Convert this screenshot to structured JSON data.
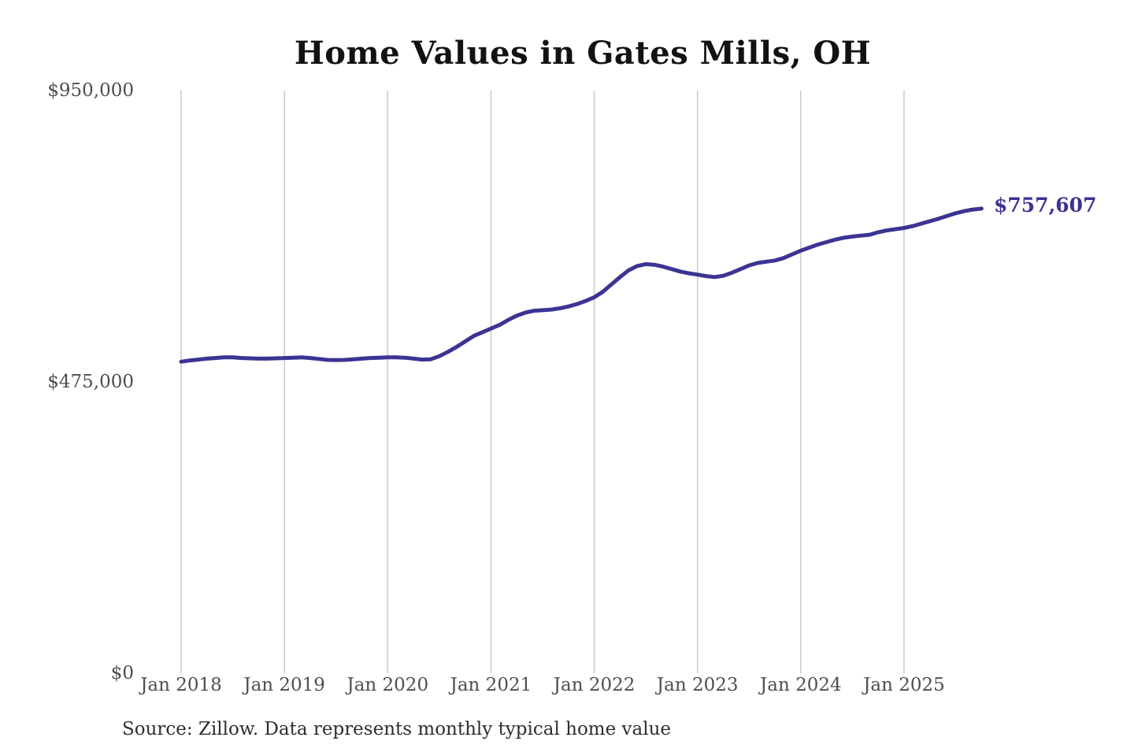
{
  "title": "Home Values in Gates Mills, OH",
  "end_label": "$757,607",
  "source": "Source: Zillow. Data represents monthly typical home value",
  "colors": {
    "line": "#3b3493",
    "grid": "#c9c9c9",
    "axis_text": "#4f4f4f",
    "title_text": "#121212",
    "annotation": "#3b3493"
  },
  "y_axis": {
    "ticks": [
      "$950,000",
      "$475,000",
      "$0"
    ]
  },
  "x_axis": {
    "ticks": [
      "Jan 2018",
      "Jan 2019",
      "Jan 2020",
      "Jan 2021",
      "Jan 2022",
      "Jan 2023",
      "Jan 2024",
      "Jan 2025"
    ]
  },
  "chart_data": {
    "type": "line",
    "title": "Home Values in Gates Mills, OH",
    "series_name": "Monthly typical home value (Zillow)",
    "xlabel": "",
    "ylabel": "",
    "ylim": [
      0,
      950000
    ],
    "y_ticks": [
      0,
      475000,
      950000
    ],
    "y_tick_labels": [
      "$0",
      "$475,000",
      "$950,000"
    ],
    "x_tick_labels": [
      "Jan 2018",
      "Jan 2019",
      "Jan 2020",
      "Jan 2021",
      "Jan 2022",
      "Jan 2023",
      "Jan 2024",
      "Jan 2025"
    ],
    "grid": "vertical-only",
    "legend": "none",
    "end_annotation": "$757,607",
    "last_value": 757607,
    "x": [
      "Jan 2018",
      "Feb 2018",
      "Mar 2018",
      "Apr 2018",
      "May 2018",
      "Jun 2018",
      "Jul 2018",
      "Aug 2018",
      "Sep 2018",
      "Oct 2018",
      "Nov 2018",
      "Dec 2018",
      "Jan 2019",
      "Feb 2019",
      "Mar 2019",
      "Apr 2019",
      "May 2019",
      "Jun 2019",
      "Jul 2019",
      "Aug 2019",
      "Sep 2019",
      "Oct 2019",
      "Nov 2019",
      "Dec 2019",
      "Jan 2020",
      "Feb 2020",
      "Mar 2020",
      "Apr 2020",
      "May 2020",
      "Jun 2020",
      "Jul 2020",
      "Aug 2020",
      "Sep 2020",
      "Oct 2020",
      "Nov 2020",
      "Dec 2020",
      "Jan 2021",
      "Feb 2021",
      "Mar 2021",
      "Apr 2021",
      "May 2021",
      "Jun 2021",
      "Jul 2021",
      "Aug 2021",
      "Sep 2021",
      "Oct 2021",
      "Nov 2021",
      "Dec 2021",
      "Jan 2022",
      "Feb 2022",
      "Mar 2022",
      "Apr 2022",
      "May 2022",
      "Jun 2022",
      "Jul 2022",
      "Aug 2022",
      "Sep 2022",
      "Oct 2022",
      "Nov 2022",
      "Dec 2022",
      "Jan 2023",
      "Feb 2023",
      "Mar 2023",
      "Apr 2023",
      "May 2023",
      "Jun 2023",
      "Jul 2023",
      "Aug 2023",
      "Sep 2023",
      "Oct 2023",
      "Nov 2023",
      "Dec 2023",
      "Jan 2024",
      "Feb 2024",
      "Mar 2024",
      "Apr 2024",
      "May 2024",
      "Jun 2024",
      "Jul 2024",
      "Aug 2024",
      "Sep 2024",
      "Oct 2024",
      "Nov 2024",
      "Dec 2024",
      "Jan 2025",
      "Feb 2025",
      "Mar 2025",
      "Apr 2025",
      "May 2025",
      "Jun 2025",
      "Jul 2025",
      "Aug 2025",
      "Sep 2025",
      "Oct 2025"
    ],
    "values": [
      508000,
      510000,
      511500,
      513000,
      514000,
      515000,
      515000,
      514000,
      513500,
      513000,
      513000,
      513500,
      514000,
      514500,
      515000,
      514000,
      512500,
      511000,
      510500,
      511000,
      512000,
      513000,
      514000,
      514500,
      515000,
      515000,
      514500,
      513000,
      511500,
      512000,
      517000,
      524000,
      532000,
      541000,
      550000,
      556000,
      562000,
      568000,
      576000,
      583000,
      588000,
      591000,
      592000,
      593000,
      595000,
      598000,
      602000,
      607000,
      613000,
      622000,
      634000,
      646000,
      657000,
      664000,
      667000,
      666000,
      663000,
      659000,
      655000,
      652000,
      650000,
      647500,
      646000,
      648000,
      653000,
      659000,
      665000,
      669000,
      671000,
      673000,
      677000,
      683000,
      689000,
      694000,
      699000,
      703000,
      707000,
      710000,
      712000,
      713500,
      715000,
      719000,
      722000,
      724000,
      726000,
      729000,
      733000,
      737000,
      741000,
      745500,
      750000,
      753500,
      756000,
      757607
    ]
  }
}
